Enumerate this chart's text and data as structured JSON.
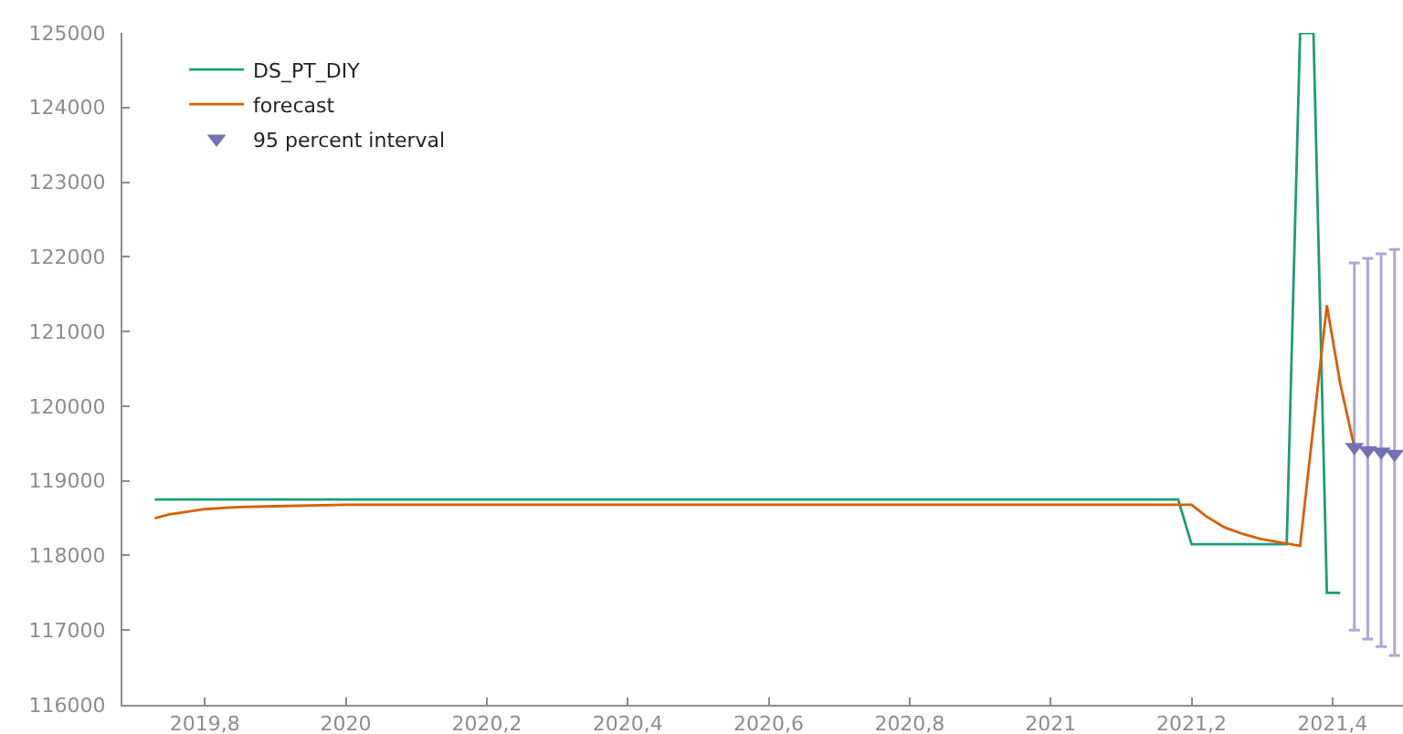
{
  "chart_data": {
    "type": "line",
    "xlim": [
      2019.683,
      2021.5
    ],
    "ylim": [
      116000,
      125000
    ],
    "xticks": [
      {
        "value": 2019.8,
        "label": "2019,8"
      },
      2020,
      {
        "value": 2020.2,
        "label": "2020,2"
      },
      {
        "value": 2020.4,
        "label": "2020,4"
      },
      {
        "value": 2020.6,
        "label": "2020,6"
      },
      {
        "value": 2020.8,
        "label": "2020,8"
      },
      2021,
      {
        "value": 2021.2,
        "label": "2021,2"
      },
      {
        "value": 2021.4,
        "label": "2021,4"
      }
    ],
    "yticks": [
      116000,
      117000,
      118000,
      119000,
      120000,
      121000,
      122000,
      123000,
      124000,
      125000
    ],
    "legend": "top left",
    "line_style": "solid",
    "series": [
      {
        "name": "DS_PT_DIY",
        "color": "#1b9e77",
        "x": [
          2019.729,
          2021.181,
          2021.2,
          2021.335,
          2021.354,
          2021.373,
          2021.392,
          2021.411
        ],
        "values": [
          118750,
          118750,
          118150,
          118150,
          125000,
          125000,
          117500,
          117500
        ]
      },
      {
        "name": "forecast",
        "color": "#d95f02",
        "x": [
          2019.729,
          2019.75,
          2019.8,
          2019.85,
          2019.9,
          2020,
          2021.2,
          2021.22,
          2021.246,
          2021.272,
          2021.298,
          2021.335,
          2021.354,
          2021.392,
          2021.411,
          2021.431
        ],
        "values": [
          118500,
          118550,
          118620,
          118650,
          118660,
          118680,
          118680,
          118530,
          118380,
          118290,
          118220,
          118160,
          118130,
          121350,
          120300,
          119450
        ]
      },
      {
        "name": "95 percent interval",
        "type": "scatter",
        "marker": "triangle",
        "color": "#7570b3",
        "x": [
          2021.431,
          2021.45,
          2021.469,
          2021.488
        ],
        "values": [
          119450,
          119410,
          119390,
          119360
        ],
        "errors": [
          [
            117000,
            121920
          ],
          [
            116880,
            121980
          ],
          [
            116780,
            122040
          ],
          [
            116660,
            122100
          ]
        ]
      }
    ]
  }
}
